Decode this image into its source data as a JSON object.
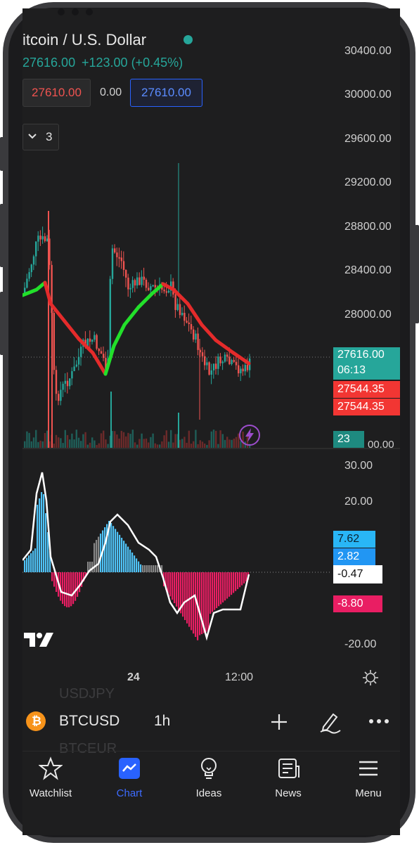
{
  "chart": {
    "symbol_title": "itcoin / U.S. Dollar",
    "ohlc": {
      "last": "27616.00",
      "change": "+123.00 (+0.45%)"
    },
    "bid": "27610.00",
    "spread": "0.00",
    "ask": "27610.00",
    "indicators_count": "3",
    "price_axis": [
      "30400.00",
      "30000.00",
      "29600.00",
      "29200.00",
      "28800.00",
      "28400.00",
      "28000.00"
    ],
    "price_axis_bottom": "00.00",
    "last_price_tag": "27616.00",
    "countdown_tag": "06:13",
    "ma_tag_1": "27544.35",
    "ma_tag_2": "27544.35",
    "volume_tag": "23",
    "macd_axis": [
      "30.00",
      "20.00",
      "-20.00"
    ],
    "macd_tags": {
      "blue_light": "7.62",
      "blue": "2.82",
      "white": "-0.47",
      "pink": "-8.80"
    },
    "time_axis": [
      "24",
      "12:00"
    ],
    "logo_text": "TV",
    "colors": {
      "up": "#26a69a",
      "down": "#ef5350",
      "ma_up": "#22e02a",
      "ma_down": "#e52b2b",
      "macd_pos": "#4fc3f7",
      "macd_neg": "#e91e63",
      "accent": "#2962ff"
    }
  },
  "symbol_bar": {
    "symbol": "BTCUSD",
    "interval": "1h",
    "ghost_above": "USDJPY",
    "ghost_below": "BTCEUR"
  },
  "nav": [
    {
      "label": "Watchlist",
      "icon": "star-icon"
    },
    {
      "label": "Chart",
      "icon": "chart-icon"
    },
    {
      "label": "Ideas",
      "icon": "lightbulb-icon"
    },
    {
      "label": "News",
      "icon": "newspaper-icon"
    },
    {
      "label": "Menu",
      "icon": "hamburger-icon"
    }
  ]
}
